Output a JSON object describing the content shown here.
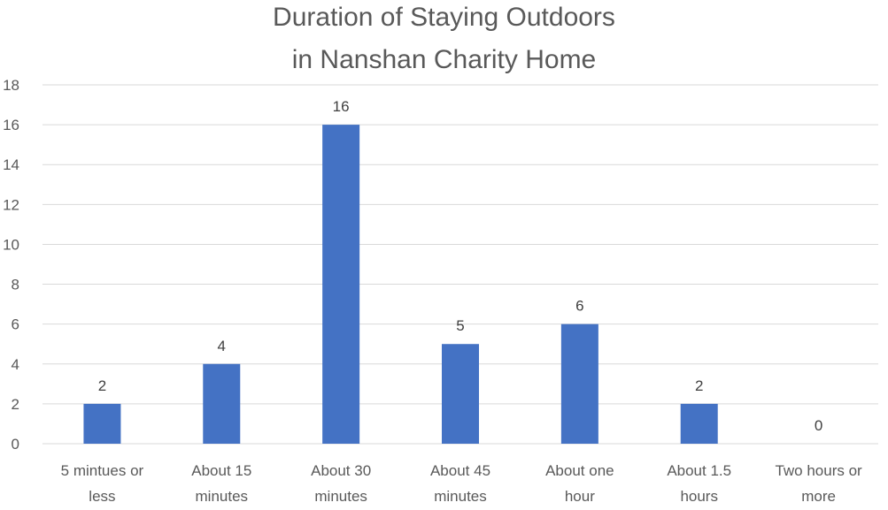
{
  "chart_data": {
    "type": "bar",
    "title_lines": [
      "Duration of Staying Outdoors",
      "in Nanshan Charity Home"
    ],
    "categories": [
      [
        "5 mintues or",
        "less"
      ],
      [
        "About 15",
        "minutes"
      ],
      [
        "About 30",
        "minutes"
      ],
      [
        "About 45",
        "minutes"
      ],
      [
        "About one",
        "hour"
      ],
      [
        "About 1.5",
        "hours"
      ],
      [
        "Two hours or",
        "more"
      ]
    ],
    "values": [
      2,
      4,
      16,
      5,
      6,
      2,
      0
    ],
    "data_labels": [
      "2",
      "4",
      "16",
      "5",
      "6",
      "2",
      "0"
    ],
    "ylim": [
      0,
      18
    ],
    "yticks": [
      "0",
      "2",
      "4",
      "6",
      "8",
      "10",
      "12",
      "14",
      "16",
      "18"
    ],
    "grid": true,
    "legend": "none",
    "bar_color": "#4472C4",
    "grid_color": "#D9D9D9"
  }
}
